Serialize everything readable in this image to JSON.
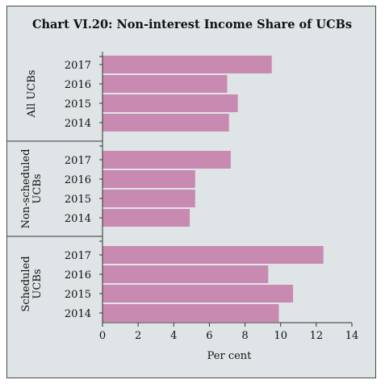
{
  "chart_data": {
    "type": "bar",
    "orientation": "horizontal",
    "title": "Chart VI.20: Non-interest Income Share of UCBs",
    "xlabel": "Per cent",
    "ylabel": "",
    "xlim": [
      0,
      14
    ],
    "xticks": [
      0,
      2,
      4,
      6,
      8,
      10,
      12,
      14
    ],
    "grid": false,
    "bar_color": "#c98ab2",
    "groups": [
      {
        "name": "All UCBs",
        "name_lines": [
          "All UCBs"
        ],
        "categories": [
          "2017",
          "2016",
          "2015",
          "2014"
        ],
        "values": [
          9.5,
          7.0,
          7.6,
          7.1
        ]
      },
      {
        "name": "Non-scheduled UCBs",
        "name_lines": [
          "Non-scheduled",
          "UCBs"
        ],
        "categories": [
          "2017",
          "2016",
          "2015",
          "2014"
        ],
        "values": [
          7.2,
          5.2,
          5.2,
          4.9
        ]
      },
      {
        "name": "Scheduled UCBs",
        "name_lines": [
          "Scheduled",
          "UCBs"
        ],
        "categories": [
          "2017",
          "2016",
          "2015",
          "2014"
        ],
        "values": [
          12.4,
          9.3,
          10.7,
          9.9
        ]
      }
    ]
  }
}
